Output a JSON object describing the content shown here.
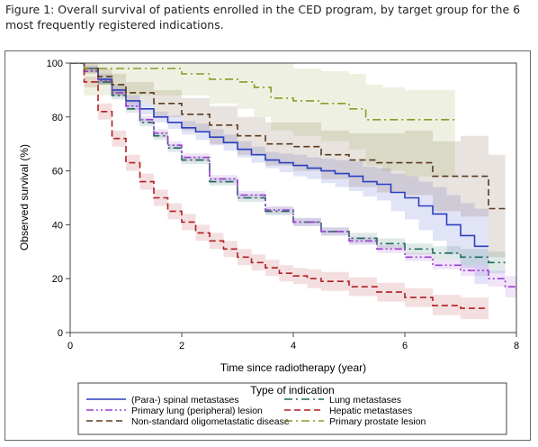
{
  "caption": "Figure 1: Overall survival of patients enrolled in the CED program, by target group for the 6 most frequently registered indications.",
  "chart_data": {
    "type": "line",
    "title": "",
    "xlabel": "Time since radiotherapy (year)",
    "ylabel": "Observed survival (%)",
    "xlim": [
      0,
      8
    ],
    "ylim": [
      0,
      100
    ],
    "xticks": [
      0,
      2,
      4,
      6,
      8
    ],
    "yticks": [
      0,
      20,
      40,
      60,
      80,
      100
    ],
    "grid": false,
    "legend_title": "Type of indication",
    "legend_position": "bottom",
    "series": [
      {
        "name": "(Para-) spinal metastases",
        "color": "#2b3fbf",
        "dash": "solid",
        "x": [
          0,
          0.25,
          0.5,
          0.75,
          1.0,
          1.25,
          1.5,
          1.75,
          2.0,
          2.25,
          2.5,
          2.75,
          3.0,
          3.25,
          3.5,
          3.75,
          4.0,
          4.25,
          4.5,
          4.75,
          5.0,
          5.25,
          5.5,
          5.75,
          6.0,
          6.25,
          6.5,
          6.75,
          7.0,
          7.25,
          7.5
        ],
        "y": [
          100,
          98,
          94,
          90,
          86,
          83,
          80,
          78,
          76,
          74.5,
          72.5,
          70.5,
          68,
          66,
          64,
          63,
          62,
          61,
          60,
          59,
          58,
          56,
          55,
          52,
          50,
          47,
          44,
          40,
          36,
          32,
          32
        ],
        "ci_lower": [
          100,
          97,
          92,
          88,
          84,
          81,
          78,
          75.5,
          73.5,
          71.5,
          69.5,
          67.5,
          65,
          63,
          61,
          59.5,
          58,
          57,
          55.5,
          54,
          52.5,
          50.5,
          49,
          45,
          42,
          38,
          34,
          29,
          24,
          18,
          18
        ],
        "ci_upper": [
          100,
          99,
          96,
          92,
          88,
          85,
          82,
          80.5,
          78.5,
          77.5,
          75.5,
          73.5,
          71,
          69,
          67,
          66.5,
          66,
          65,
          64.5,
          64,
          63.5,
          61.5,
          61,
          59,
          58,
          56,
          54,
          51,
          48,
          46,
          46
        ]
      },
      {
        "name": "Lung metastases",
        "color": "#1f6b5a",
        "dash": "dashdot",
        "x": [
          0,
          0.25,
          0.5,
          0.75,
          1.0,
          1.25,
          1.5,
          1.75,
          2.0,
          2.5,
          3.0,
          3.5,
          4.0,
          4.5,
          5.0,
          5.5,
          6.0,
          6.5,
          7.0,
          7.5,
          7.8
        ],
        "y": [
          100,
          97,
          93,
          88,
          83,
          78,
          73,
          68.5,
          64,
          56,
          50,
          45,
          41,
          37.5,
          35,
          33,
          31,
          29.5,
          28,
          26,
          26
        ],
        "ci_lower": [
          100,
          96.5,
          92,
          86.5,
          81.5,
          76.5,
          71.5,
          67,
          62.5,
          54.5,
          48.5,
          43.5,
          39.5,
          36,
          33,
          31,
          29,
          27,
          25,
          22,
          22
        ],
        "ci_upper": [
          100,
          97.5,
          94,
          89.5,
          84.5,
          79.5,
          74.5,
          70,
          65.5,
          57.5,
          51.5,
          46.5,
          42.5,
          39,
          37,
          35,
          33,
          32,
          31,
          30,
          30
        ]
      },
      {
        "name": "Primary lung (peripheral) lesion",
        "color": "#9a3fd1",
        "dash": "dashdotdot",
        "x": [
          0,
          0.25,
          0.5,
          0.75,
          1.0,
          1.25,
          1.5,
          1.75,
          2.0,
          2.5,
          3.0,
          3.5,
          4.0,
          4.5,
          5.0,
          5.5,
          6.0,
          6.5,
          7.0,
          7.5,
          7.8,
          8.0
        ],
        "y": [
          100,
          97,
          93.5,
          89,
          84,
          79,
          74,
          69.5,
          65,
          57,
          51,
          45.5,
          41,
          37.5,
          34,
          31,
          28,
          25,
          23,
          20,
          17,
          16
        ],
        "ci_lower": [
          100,
          96.5,
          92.5,
          87.5,
          82.5,
          77.5,
          72.5,
          68,
          63.5,
          55.5,
          49.5,
          44,
          39.5,
          36,
          32.5,
          29.5,
          26.5,
          23.5,
          21,
          17,
          13,
          12
        ],
        "ci_upper": [
          100,
          97.5,
          94.5,
          90.5,
          85.5,
          80.5,
          75.5,
          71,
          66.5,
          58.5,
          52.5,
          47,
          42.5,
          39,
          35.5,
          32.5,
          29.5,
          27,
          25,
          23,
          21,
          20
        ]
      },
      {
        "name": "Hepatic metastases",
        "color": "#b01f24",
        "dash": "longdash",
        "x": [
          0,
          0.25,
          0.5,
          0.75,
          1.0,
          1.25,
          1.5,
          1.75,
          2.0,
          2.25,
          2.5,
          2.75,
          3.0,
          3.25,
          3.5,
          3.75,
          4.0,
          4.25,
          4.5,
          5.0,
          5.5,
          6.0,
          6.5,
          7.0,
          7.5
        ],
        "y": [
          100,
          93,
          82,
          72,
          63,
          56,
          50,
          45,
          41,
          37,
          34,
          31,
          28,
          26,
          24,
          22,
          21,
          20,
          19,
          17,
          15,
          13,
          10,
          9,
          9
        ],
        "ci_lower": [
          100,
          91,
          79,
          69,
          60,
          53,
          47,
          42,
          38,
          34,
          31,
          28,
          25,
          23,
          21,
          19,
          18,
          16.5,
          15.5,
          13.5,
          11.5,
          9.5,
          6.5,
          5,
          5
        ],
        "ci_upper": [
          100,
          95,
          85,
          75,
          66,
          59,
          53,
          48,
          44,
          40,
          37,
          34,
          31,
          29,
          27,
          25,
          24,
          23.5,
          22.5,
          20.5,
          18.5,
          16.5,
          14,
          13,
          13
        ]
      },
      {
        "name": "Non-standard oligometastatic disease",
        "color": "#5a3a1e",
        "dash": "longdash",
        "x": [
          0,
          0.25,
          0.5,
          0.75,
          1.0,
          1.5,
          2.0,
          2.5,
          3.0,
          3.5,
          4.0,
          4.5,
          5.0,
          5.5,
          6.0,
          6.5,
          7.0,
          7.5,
          7.8
        ],
        "y": [
          100,
          98,
          95,
          92,
          89,
          85,
          81,
          77,
          73,
          70,
          69,
          66,
          64,
          63,
          63,
          58,
          58,
          46,
          46
        ],
        "ci_lower": [
          100,
          96,
          92,
          88,
          85,
          80,
          75,
          70,
          66,
          62,
          60,
          57,
          54,
          52,
          51,
          45,
          43,
          28,
          28
        ],
        "ci_upper": [
          100,
          100,
          98,
          96,
          93,
          90,
          87,
          84,
          80,
          78,
          78,
          75,
          74,
          74,
          75,
          71,
          73,
          66,
          66
        ]
      },
      {
        "name": "Primary prostate lesion",
        "color": "#8a9a2a",
        "dash": "dashdot",
        "x": [
          0,
          0.25,
          0.5,
          1.0,
          1.5,
          2.0,
          2.5,
          3.0,
          3.3,
          3.6,
          4.0,
          4.5,
          5.0,
          5.3,
          5.6,
          6.0,
          6.5,
          6.9
        ],
        "y": [
          100,
          98,
          98,
          98,
          98,
          96,
          94,
          93,
          91,
          87,
          86,
          85,
          83,
          79,
          79,
          79,
          79,
          79
        ],
        "ci_lower": [
          100,
          88,
          88,
          88,
          88,
          88,
          85,
          83,
          80,
          75,
          73,
          71,
          68,
          62,
          60,
          58,
          58,
          58
        ],
        "ci_upper": [
          100,
          100,
          100,
          100,
          100,
          100,
          100,
          100,
          100,
          100,
          98,
          97,
          96,
          92,
          91,
          90,
          90,
          90
        ]
      }
    ]
  }
}
